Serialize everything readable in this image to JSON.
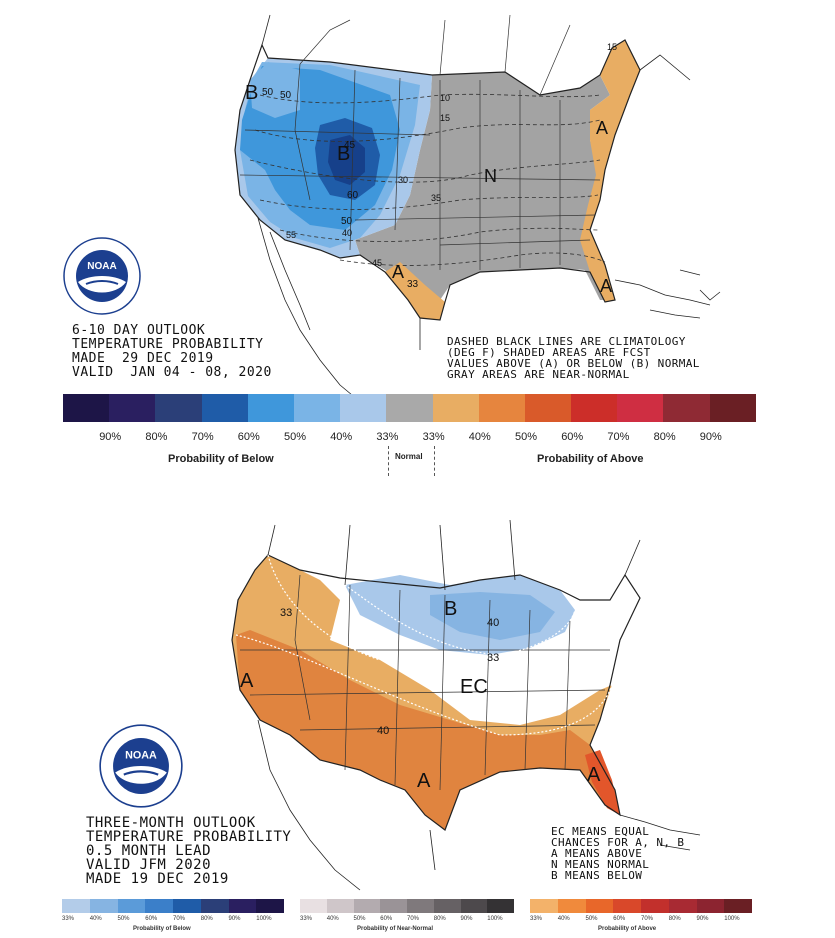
{
  "top_panel": {
    "title_lines": [
      "6-10 DAY OUTLOOK",
      "TEMPERATURE PROBABILITY",
      "MADE  29 DEC 2019",
      "VALID  JAN 04 - 08, 2020"
    ],
    "notes_lines": [
      "DASHED BLACK LINES ARE CLIMATOLOGY",
      "(DEG F) SHADED AREAS ARE FCST",
      "VALUES ABOVE (A) OR BELOW (B) NORMAL",
      "GRAY AREAS ARE NEAR-NORMAL"
    ],
    "map_labels": {
      "B_west": "B",
      "B_rockies": "B",
      "N": "N",
      "A_texas": "A",
      "A_florida": "A",
      "A_northeast": "A",
      "c50a": "50",
      "c40a": "40",
      "c50b": "50",
      "c45a": "45",
      "c60a": "60",
      "c50c": "50",
      "c40b": "40",
      "c55": "55",
      "c45b": "45",
      "c33": "33",
      "c10": "10",
      "c15a": "15",
      "c30": "30",
      "c35": "35",
      "c15b": "15"
    },
    "legend": {
      "colors": [
        "#1d1547",
        "#2a1f60",
        "#2b3f78",
        "#1f5ca8",
        "#3f97db",
        "#7ab4e6",
        "#a9c8ea",
        "#a9a9a9",
        "#e8ad63",
        "#e6853e",
        "#d95a2a",
        "#cc2e29",
        "#cf2e42",
        "#8f2a34",
        "#6a1f24"
      ],
      "labels": [
        "90%",
        "80%",
        "70%",
        "60%",
        "50%",
        "40%",
        "33%",
        "33%",
        "40%",
        "50%",
        "60%",
        "70%",
        "80%",
        "90%"
      ],
      "below_caption": "Probability of Below",
      "normal_caption": "Normal",
      "above_caption": "Probability of Above"
    }
  },
  "bottom_panel": {
    "title_lines": [
      "THREE-MONTH OUTLOOK",
      "TEMPERATURE PROBABILITY",
      "0.5 MONTH LEAD",
      "VALID JFM 2020",
      "MADE 19 DEC 2019"
    ],
    "notes_lines": [
      "EC MEANS EQUAL",
      "CHANCES FOR A, N, B",
      "A MEANS ABOVE",
      "N MEANS NORMAL",
      "B MEANS BELOW"
    ],
    "map_labels": {
      "B": "B",
      "EC": "EC",
      "A_west": "A",
      "A_texas": "A",
      "A_florida": "A",
      "c33a": "33",
      "c40a": "40",
      "c33b": "33",
      "c40b": "40"
    },
    "legend_below": {
      "colors": [
        "#b3cce9",
        "#86b4e2",
        "#5b9bd9",
        "#3b7fc9",
        "#1f5ca8",
        "#2b3f78",
        "#2a1f60",
        "#1d1547"
      ],
      "labels": [
        "33%",
        "40%",
        "50%",
        "60%",
        "70%",
        "80%",
        "90%",
        "100%"
      ],
      "caption": "Probability of Below"
    },
    "legend_normal": {
      "colors": [
        "#e8e0e2",
        "#cfc6c9",
        "#b3abaf",
        "#9a9397",
        "#7f797c",
        "#666164",
        "#4d494c",
        "#343234"
      ],
      "labels": [
        "33%",
        "40%",
        "50%",
        "60%",
        "70%",
        "80%",
        "90%",
        "100%"
      ],
      "caption": "Probability of Near-Normal"
    },
    "legend_above": {
      "colors": [
        "#f3b26a",
        "#f08a3c",
        "#e8672a",
        "#d9482a",
        "#c2302c",
        "#a82a33",
        "#8c2430",
        "#6a1f24"
      ],
      "labels": [
        "33%",
        "40%",
        "50%",
        "60%",
        "70%",
        "80%",
        "90%",
        "100%"
      ],
      "caption": "Probability of Above"
    }
  },
  "colors": {
    "gray_normal": "#a3a3a3",
    "blue_light": "#a9c8ea",
    "blue_mid": "#7ab4e6",
    "blue_bright": "#3f97db",
    "blue_dark": "#1f5ca8",
    "blue_navy": "#16408a",
    "orange_light": "#e8ad63",
    "orange_mid": "#e0843f",
    "orange_red": "#e2562b",
    "noaa_blue": "#1c3f8f"
  }
}
